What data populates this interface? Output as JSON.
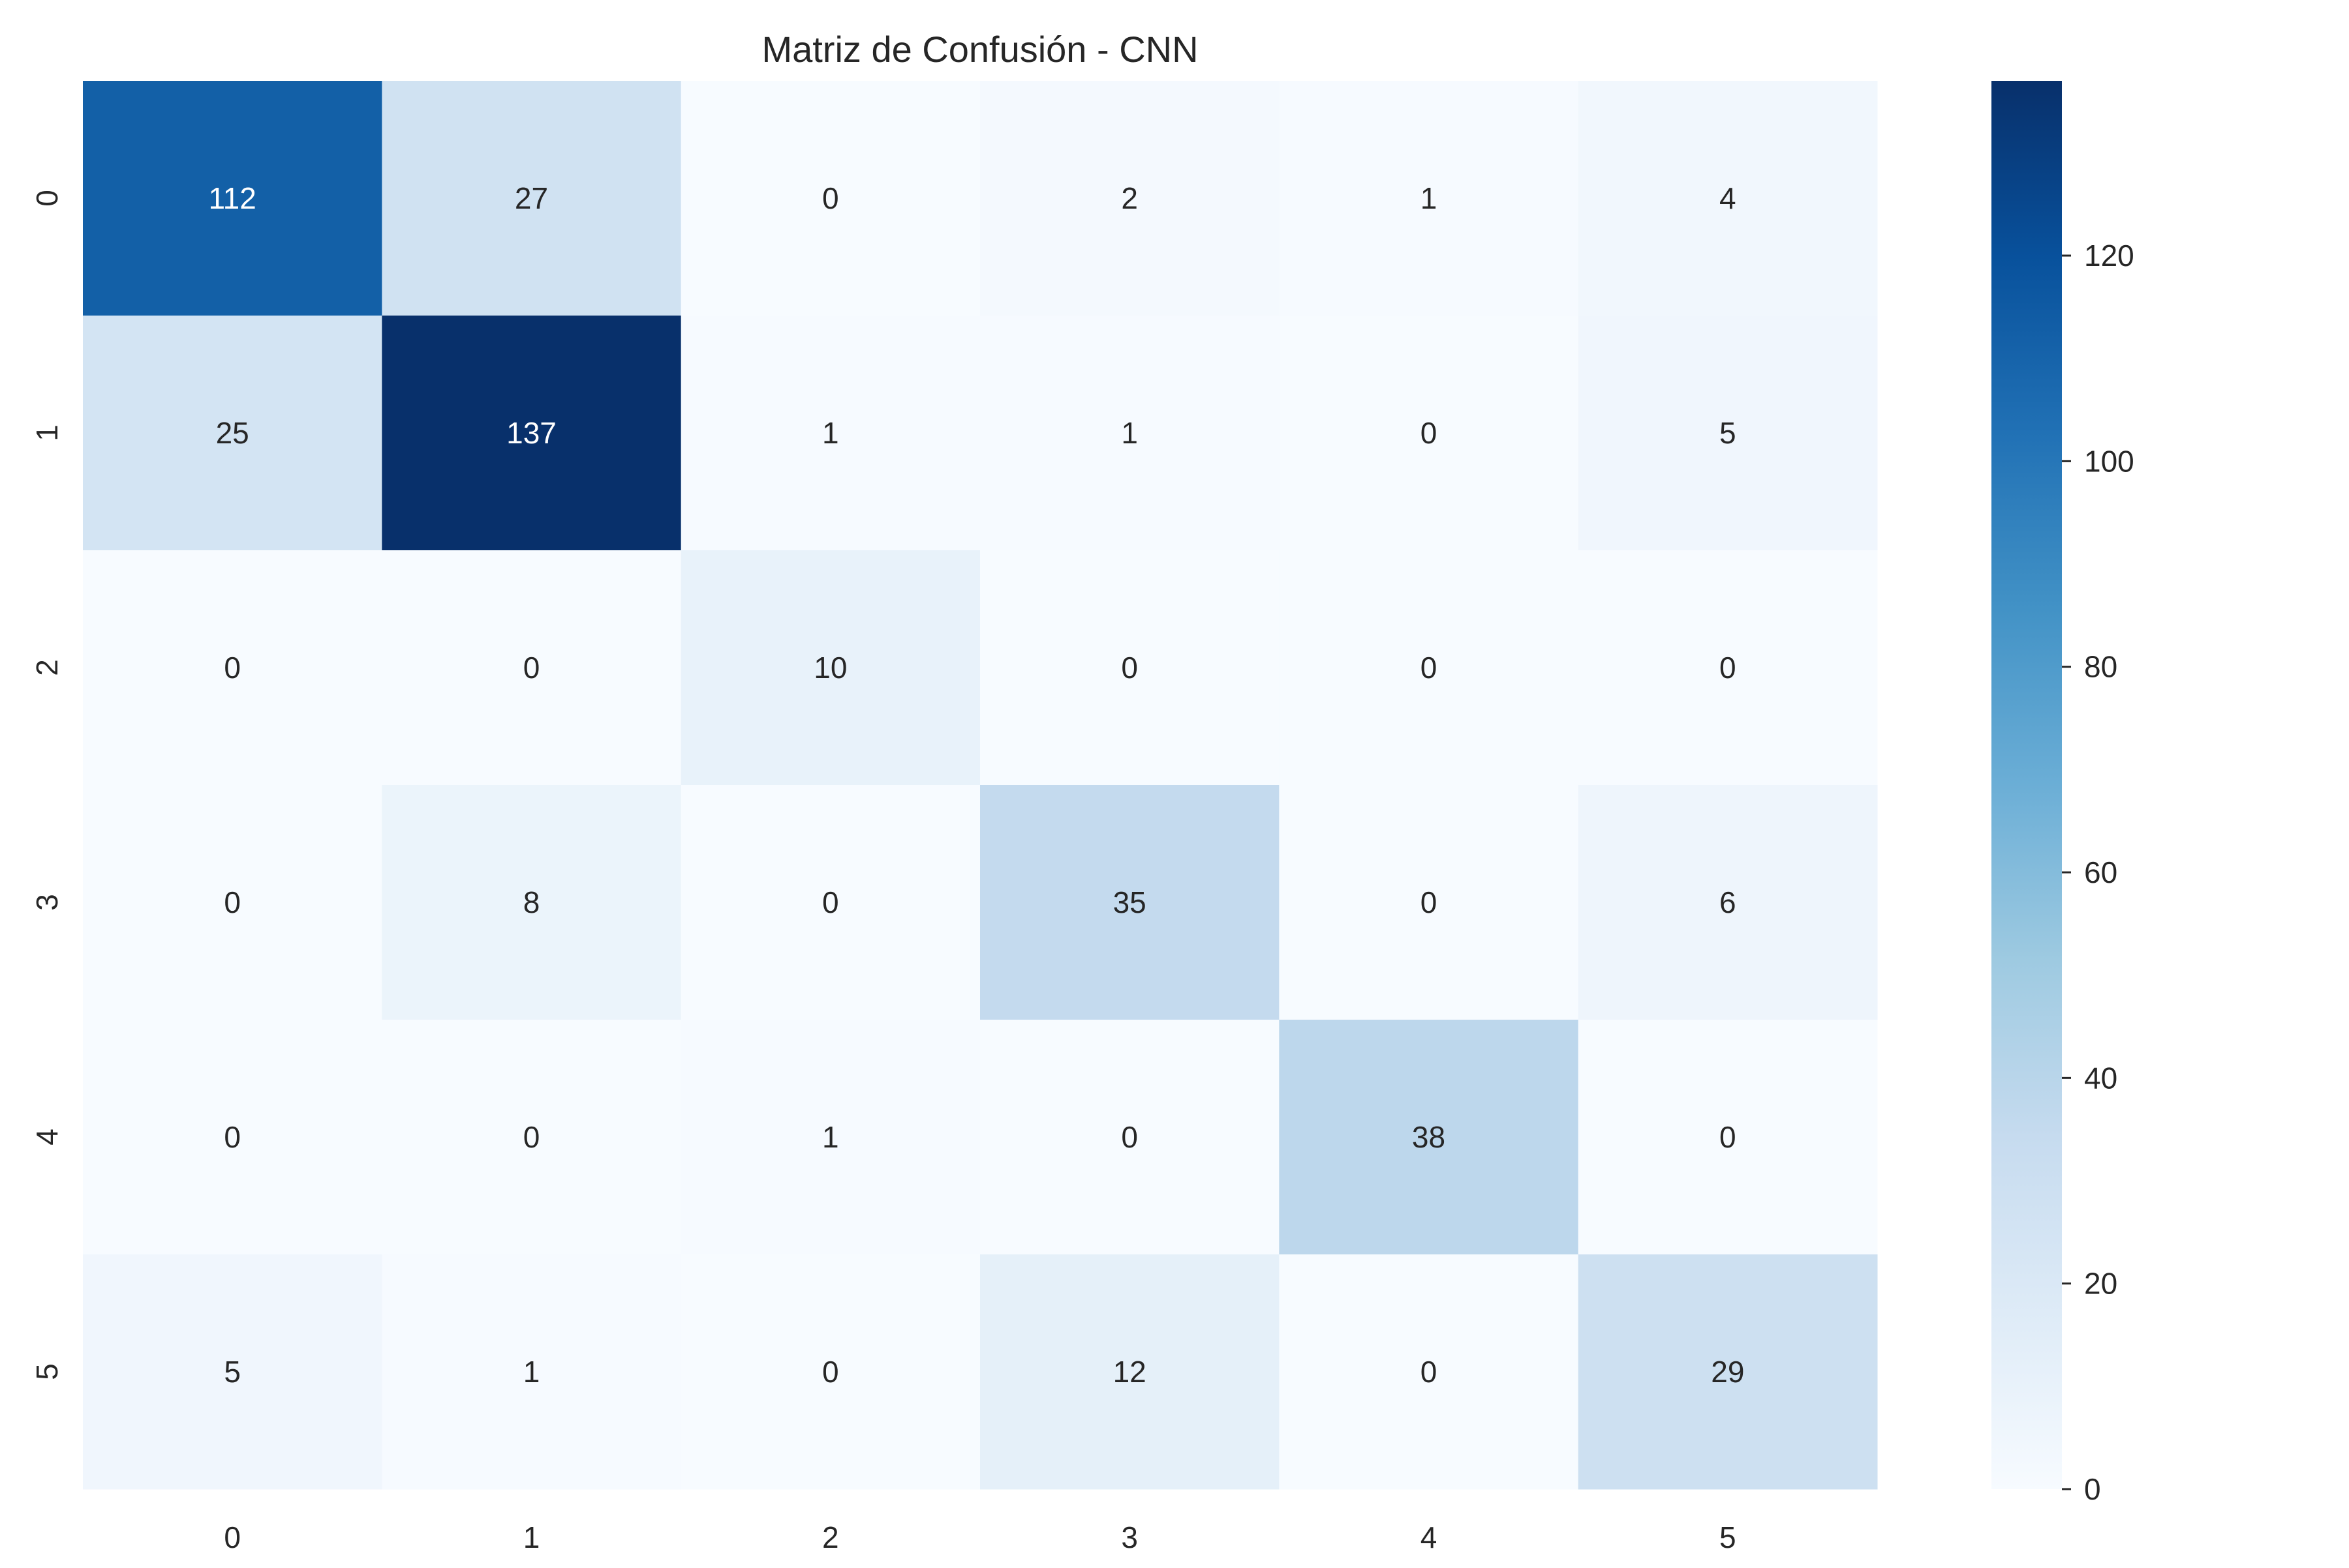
{
  "chart_data": {
    "type": "heatmap",
    "title": "Matriz de Confusión - CNN",
    "xlabel": "",
    "ylabel": "",
    "x_categories": [
      "0",
      "1",
      "2",
      "3",
      "4",
      "5"
    ],
    "y_categories": [
      "0",
      "1",
      "2",
      "3",
      "4",
      "5"
    ],
    "values": [
      [
        112,
        27,
        0,
        2,
        1,
        4
      ],
      [
        25,
        137,
        1,
        1,
        0,
        5
      ],
      [
        0,
        0,
        10,
        0,
        0,
        0
      ],
      [
        0,
        8,
        0,
        35,
        0,
        6
      ],
      [
        0,
        0,
        1,
        0,
        38,
        0
      ],
      [
        5,
        1,
        0,
        12,
        0,
        29
      ]
    ],
    "colormap": "Blues",
    "colormap_stops": [
      "#f7fbff",
      "#deebf7",
      "#c6dbef",
      "#9ecae1",
      "#6baed6",
      "#4292c6",
      "#2171b5",
      "#08519c",
      "#08306b"
    ],
    "colorbar": {
      "vmin": 0,
      "vmax": 137,
      "ticks": [
        "0",
        "20",
        "40",
        "60",
        "80",
        "100",
        "120"
      ]
    },
    "annotation_colors": {
      "dark_text": "#262626",
      "light_text": "#ffffff"
    },
    "grid": false,
    "legend": "colorbar-right"
  }
}
